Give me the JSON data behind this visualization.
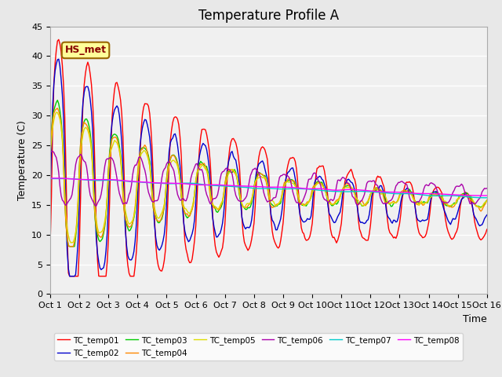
{
  "title": "Temperature Profile A",
  "xlabel": "Time",
  "ylabel": "Temperature (C)",
  "ylim": [
    0,
    45
  ],
  "yticks": [
    0,
    5,
    10,
    15,
    20,
    25,
    30,
    35,
    40,
    45
  ],
  "xtick_labels": [
    "Oct 1",
    "Oct 2",
    "Oct 3",
    "Oct 4",
    "Oct 5",
    "Oct 6",
    "Oct 7",
    "Oct 8",
    "Oct 9",
    "Oct 10",
    "Oct 11",
    "Oct 12",
    "Oct 13",
    "Oct 14",
    "Oct 15",
    "Oct 16"
  ],
  "annotation_text": "HS_met",
  "series_colors": {
    "TC_temp01": "#ff0000",
    "TC_temp02": "#0000cc",
    "TC_temp03": "#00cc00",
    "TC_temp04": "#ff8800",
    "TC_temp05": "#dddd00",
    "TC_temp06": "#aa00aa",
    "TC_temp07": "#00cccc",
    "TC_temp08": "#ff00ff"
  },
  "bg_color": "#e8e8e8",
  "plot_bg": "#f0f0f0",
  "title_fontsize": 12,
  "label_fontsize": 9,
  "tick_fontsize": 8
}
